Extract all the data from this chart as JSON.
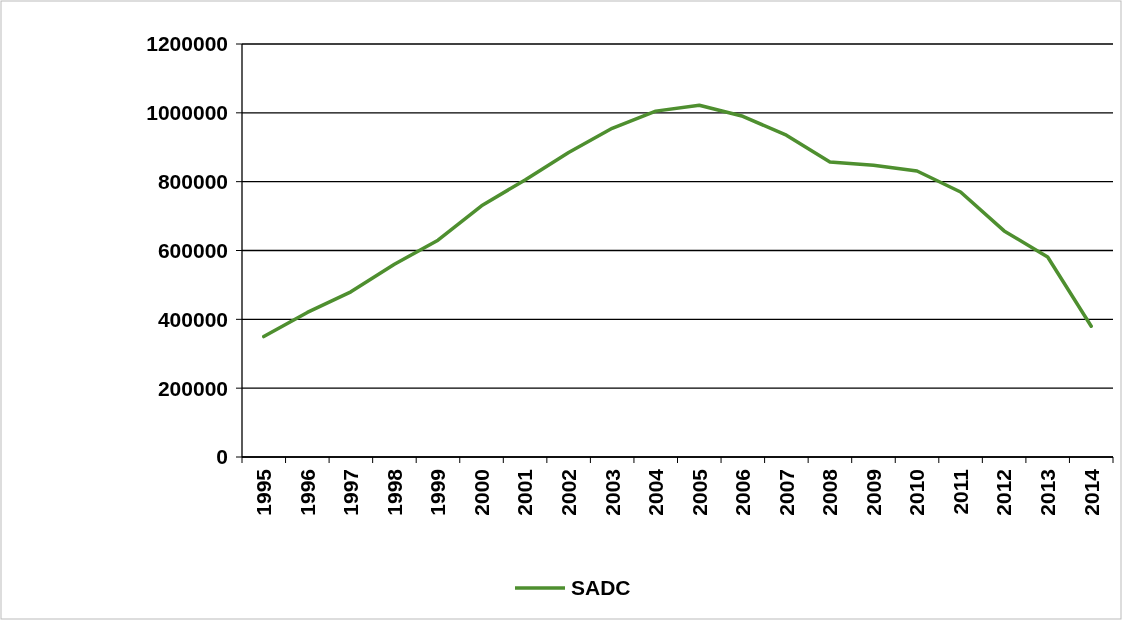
{
  "chart_data": {
    "type": "line",
    "categories": [
      "1995",
      "1996",
      "1997",
      "1998",
      "1999",
      "2000",
      "2001",
      "2002",
      "2003",
      "2004",
      "2005",
      "2006",
      "2007",
      "2008",
      "2009",
      "2010",
      "2011",
      "2012",
      "2013",
      "2014"
    ],
    "series": [
      {
        "name": "SADC",
        "color": "#4e8f2f",
        "values": [
          350000,
          420000,
          480000,
          560000,
          630000,
          730000,
          805000,
          885000,
          955000,
          1005000,
          1022000,
          990000,
          935000,
          857000,
          848000,
          831000,
          770000,
          657000,
          581000,
          380000
        ]
      }
    ],
    "ylim": [
      0,
      1200000
    ],
    "yticks": [
      0,
      200000,
      400000,
      600000,
      800000,
      1000000,
      1200000
    ],
    "grid": "y",
    "legend": "bottom",
    "marker": "none",
    "line_style": "solid"
  }
}
